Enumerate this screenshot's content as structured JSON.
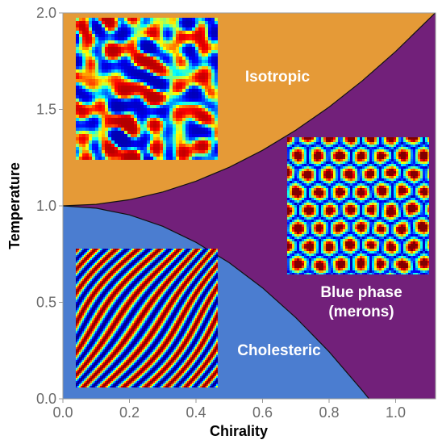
{
  "chart_data": {
    "type": "area",
    "title": "",
    "xlabel": "Chirality",
    "ylabel": "Temperature",
    "xlim": [
      0.0,
      1.12
    ],
    "ylim": [
      0.0,
      2.0
    ],
    "x_ticks": [
      "0.0",
      "0.2",
      "0.4",
      "0.6",
      "0.8",
      "1.0"
    ],
    "y_ticks": [
      "0.0",
      "0.5",
      "1.0",
      "1.5",
      "2.0"
    ],
    "grid": false,
    "regions": [
      {
        "name": "Isotropic",
        "color": "#E59A37"
      },
      {
        "name": "Blue phase (merons)",
        "color": "#72207A"
      },
      {
        "name": "Cholesteric",
        "color": "#4B7DD0"
      }
    ],
    "boundaries": [
      {
        "between": [
          "Isotropic",
          "Blue phase (merons)"
        ],
        "x": [
          0.0,
          0.1,
          0.2,
          0.3,
          0.4,
          0.5,
          0.6,
          0.7,
          0.8,
          0.9,
          1.0,
          1.1
        ],
        "y": [
          1.0,
          1.008,
          1.032,
          1.072,
          1.128,
          1.2,
          1.288,
          1.392,
          1.512,
          1.648,
          1.8,
          1.968
        ]
      },
      {
        "between": [
          "Cholesteric",
          "Blue phase (merons)"
        ],
        "x": [
          0.0,
          0.1,
          0.2,
          0.3,
          0.4,
          0.5,
          0.6,
          0.7,
          0.8,
          0.9,
          0.92
        ],
        "y": [
          1.0,
          0.988,
          0.953,
          0.894,
          0.811,
          0.705,
          0.575,
          0.421,
          0.244,
          0.043,
          0.0
        ]
      }
    ],
    "annotations": [
      {
        "text": "Isotropic"
      },
      {
        "text": "Blue phase"
      },
      {
        "text": "(merons)"
      },
      {
        "text": "Cholesteric"
      }
    ],
    "insets": [
      {
        "name": "isotropic-texture",
        "pattern": "disordered"
      },
      {
        "name": "blue-phase-texture",
        "pattern": "hexagonal-cells"
      },
      {
        "name": "cholesteric-texture",
        "pattern": "stripes"
      }
    ]
  }
}
